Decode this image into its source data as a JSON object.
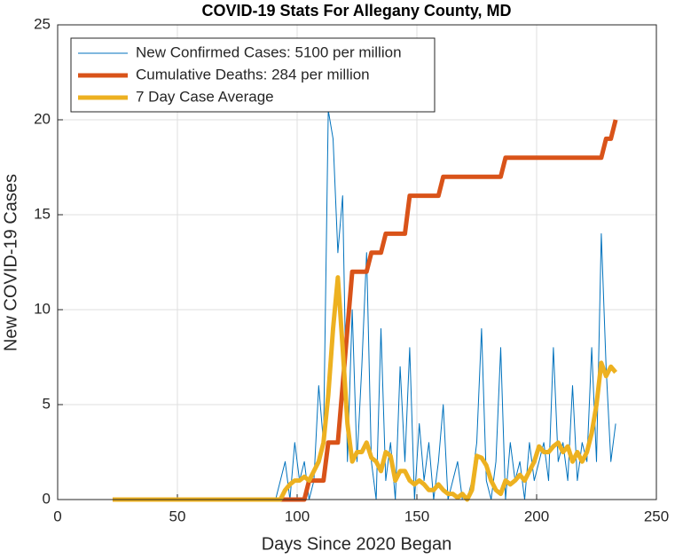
{
  "chart_data": {
    "type": "line",
    "title": "COVID-19 Stats For Allegany County, MD",
    "x_label": "Days Since 2020 Began",
    "y_label": "New COVID-19 Cases",
    "xlim": [
      0,
      250
    ],
    "xticks": [
      0,
      50,
      100,
      150,
      200,
      250
    ],
    "ylim": [
      0,
      25
    ],
    "yticks": [
      0,
      5,
      10,
      15,
      20,
      25
    ],
    "grid": true,
    "legend": "top-left",
    "x": [
      23,
      25,
      27,
      29,
      31,
      33,
      35,
      37,
      39,
      41,
      43,
      45,
      47,
      49,
      51,
      53,
      55,
      57,
      59,
      61,
      63,
      65,
      67,
      69,
      71,
      73,
      75,
      77,
      79,
      81,
      83,
      85,
      87,
      89,
      91,
      93,
      95,
      97,
      99,
      101,
      103,
      105,
      107,
      109,
      111,
      113,
      115,
      117,
      119,
      121,
      123,
      125,
      127,
      129,
      131,
      133,
      135,
      137,
      139,
      141,
      143,
      145,
      147,
      149,
      151,
      153,
      155,
      157,
      159,
      161,
      163,
      165,
      167,
      169,
      171,
      173,
      175,
      177,
      179,
      181,
      183,
      185,
      187,
      189,
      191,
      193,
      195,
      197,
      199,
      201,
      203,
      205,
      207,
      209,
      211,
      213,
      215,
      217,
      219,
      221,
      223,
      225,
      227,
      229,
      231,
      233
    ],
    "series": [
      {
        "name": "New Confirmed Cases: 5100 per million",
        "color": "#0072bd",
        "width": 1,
        "values": [
          0,
          0,
          0,
          0,
          0,
          0,
          0,
          0,
          0,
          0,
          0,
          0,
          0,
          0,
          0,
          0,
          0,
          0,
          0,
          0,
          0,
          0,
          0,
          0,
          0,
          0,
          0,
          0,
          0,
          0,
          0,
          0,
          0,
          0,
          0,
          1,
          2,
          0,
          3,
          1,
          2,
          0,
          1,
          6,
          3,
          20.5,
          19,
          13,
          16,
          2,
          10,
          2,
          7,
          13,
          2,
          0,
          9,
          1,
          3,
          0,
          7,
          2,
          8,
          0,
          4,
          1,
          3,
          0,
          2,
          5,
          0,
          1,
          2,
          0,
          0,
          1,
          3,
          9,
          1,
          0,
          2,
          8,
          0,
          3,
          1,
          2,
          0,
          3,
          1,
          2,
          3,
          1,
          8,
          2,
          3,
          1,
          6,
          1,
          3,
          2,
          8,
          2,
          14,
          7,
          2,
          4
        ]
      },
      {
        "name": "Cumulative Deaths: 284 per million",
        "color": "#d95319",
        "width": 5,
        "values": [
          0,
          0,
          0,
          0,
          0,
          0,
          0,
          0,
          0,
          0,
          0,
          0,
          0,
          0,
          0,
          0,
          0,
          0,
          0,
          0,
          0,
          0,
          0,
          0,
          0,
          0,
          0,
          0,
          0,
          0,
          0,
          0,
          0,
          0,
          0,
          0,
          0,
          0,
          0,
          0,
          0,
          1,
          1,
          1,
          1,
          3,
          3,
          3,
          6,
          9,
          12,
          12,
          12,
          12,
          13,
          13,
          13,
          14,
          14,
          14,
          14,
          14,
          16,
          16,
          16,
          16,
          16,
          16,
          16,
          17,
          17,
          17,
          17,
          17,
          17,
          17,
          17,
          17,
          17,
          17,
          17,
          17,
          18,
          18,
          18,
          18,
          18,
          18,
          18,
          18,
          18,
          18,
          18,
          18,
          18,
          18,
          18,
          18,
          18,
          18,
          18,
          18,
          18,
          19,
          19,
          20
        ]
      },
      {
        "name": "7 Day Case Average",
        "color": "#edb120",
        "width": 5,
        "values": [
          0,
          0,
          0,
          0,
          0,
          0,
          0,
          0,
          0,
          0,
          0,
          0,
          0,
          0,
          0,
          0,
          0,
          0,
          0,
          0,
          0,
          0,
          0,
          0,
          0,
          0,
          0,
          0,
          0,
          0,
          0,
          0,
          0,
          0,
          0,
          0,
          0.5,
          0.8,
          1,
          1,
          1.2,
          1,
          1.5,
          2,
          3,
          5.5,
          9,
          11.7,
          8,
          4,
          2,
          2.5,
          2.5,
          3,
          2.2,
          2,
          1.5,
          2.5,
          2.3,
          1,
          1.5,
          1.5,
          1,
          0.8,
          1,
          0.8,
          0.5,
          0.5,
          0.8,
          0.5,
          0.3,
          0.3,
          0.1,
          0.3,
          0,
          0.5,
          2.3,
          2.2,
          1.8,
          1,
          0.5,
          0.3,
          1,
          0.8,
          1,
          1.3,
          1,
          1.5,
          2,
          2.8,
          2.5,
          2.5,
          2.8,
          3,
          2.5,
          2.8,
          2,
          2.5,
          2,
          2.5,
          3.5,
          5,
          7.2,
          6.5,
          7,
          6.7
        ]
      }
    ]
  }
}
